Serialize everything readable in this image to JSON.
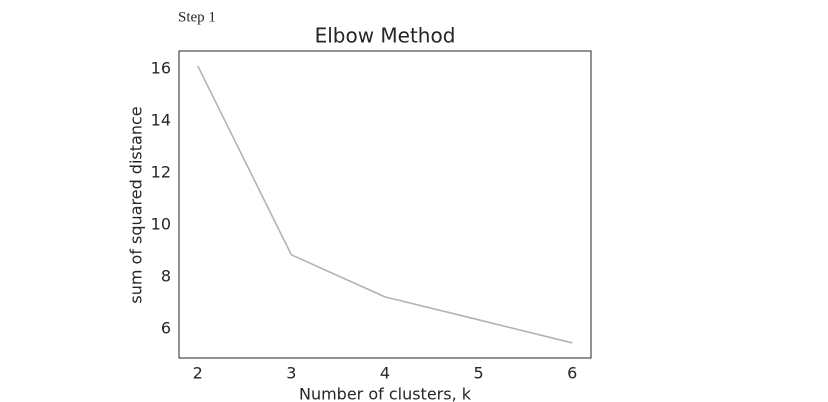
{
  "step_label": "Step 1",
  "chart_data": {
    "type": "line",
    "title": "Elbow Method",
    "x_label": "Number of clusters, k",
    "y_label": "sum of squared distance",
    "x": [
      2,
      3,
      4,
      5,
      6
    ],
    "series": [
      {
        "color": "#b3b3b3",
        "values": [
          16.12,
          8.85,
          7.23,
          6.35,
          5.46
        ]
      }
    ],
    "xlim": [
      1.8,
      6.2
    ],
    "ylim": [
      4.88,
      16.69
    ],
    "xticks": [
      2,
      3,
      4,
      5,
      6
    ],
    "yticks": [
      6,
      8,
      10,
      12,
      14,
      16
    ],
    "grid": false
  }
}
